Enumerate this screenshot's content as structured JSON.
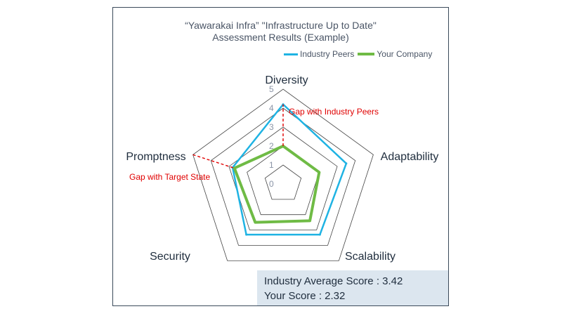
{
  "chart_data": {
    "type": "radar",
    "title": "“Yawarakai Infra” \"Infrastructure Up to Date\"",
    "subtitle": "Assessment Results (Example)",
    "axes": [
      "Diversity",
      "Adaptability",
      "Scalability",
      "Security",
      "Promptness"
    ],
    "rticks": [
      "0",
      "1",
      "2",
      "3",
      "4",
      "5"
    ],
    "rlim": [
      0,
      5
    ],
    "legend_position": "top-right",
    "series": [
      {
        "name": "Industry Peers",
        "color": "#1fb3e3",
        "values": [
          4.2,
          3.5,
          3.3,
          3.3,
          2.8
        ]
      },
      {
        "name": "Your Company",
        "color": "#6fbb45",
        "values": [
          2.0,
          2.0,
          2.4,
          2.5,
          2.7
        ]
      }
    ],
    "annotations": [
      {
        "text": "Gap with Industry Peers",
        "color": "#e00000"
      },
      {
        "text": "Gap with Target State",
        "color": "#e00000"
      }
    ]
  },
  "scores": {
    "industry_average": "Industry Average Score : 3.42",
    "your_score": "Your Score : 2.32"
  }
}
